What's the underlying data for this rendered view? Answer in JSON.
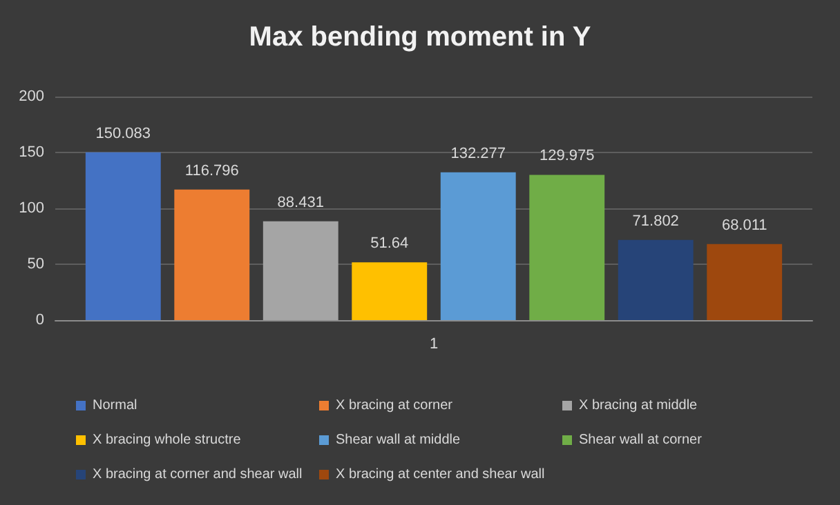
{
  "chart_data": {
    "type": "bar",
    "title": "Max bending moment in Y",
    "categories": [
      "1"
    ],
    "series": [
      {
        "name": "Normal",
        "color": "#4472c4",
        "values": [
          150.083
        ]
      },
      {
        "name": "X bracing at corner",
        "color": "#ed7d31",
        "values": [
          116.796
        ]
      },
      {
        "name": "X bracing at middle",
        "color": "#a5a5a5",
        "values": [
          88.431
        ]
      },
      {
        "name": "X bracing whole structre",
        "color": "#ffc000",
        "values": [
          51.64
        ]
      },
      {
        "name": "Shear wall at middle",
        "color": "#5b9bd5",
        "values": [
          132.277
        ]
      },
      {
        "name": "Shear wall at corner",
        "color": "#70ad47",
        "values": [
          129.975
        ]
      },
      {
        "name": "X bracing at corner and shear wall",
        "color": "#264478",
        "values": [
          71.802
        ]
      },
      {
        "name": "X bracing at center and shear wall",
        "color": "#9e480e",
        "values": [
          68.011
        ]
      }
    ],
    "ylim": [
      0,
      200
    ],
    "yticks": [
      0,
      50,
      100,
      150,
      200
    ],
    "grid": "y",
    "legend": "bottom",
    "data_labels": true
  }
}
